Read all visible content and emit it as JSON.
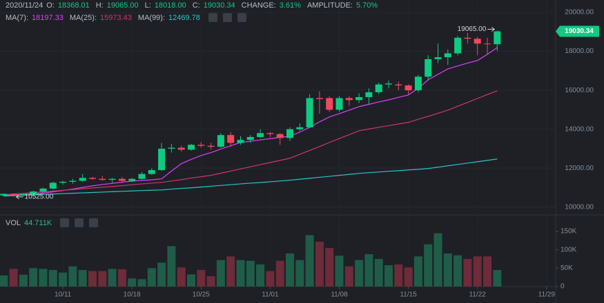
{
  "header": {
    "date": "2020/11/24",
    "fields": [
      {
        "label": "O:",
        "value": "18368.01"
      },
      {
        "label": "H:",
        "value": "19065.00"
      },
      {
        "label": "L:",
        "value": "18018.00"
      },
      {
        "label": "C:",
        "value": "19030.34"
      },
      {
        "label": "CHANGE:",
        "value": "3.61%"
      },
      {
        "label": "AMPLITUDE:",
        "value": "5.70%"
      }
    ],
    "ma": [
      {
        "label": "MA(7):",
        "value": "18197.33"
      },
      {
        "label": "MA(25):",
        "value": "15973.43"
      },
      {
        "label": "MA(99):",
        "value": "12469.78"
      }
    ]
  },
  "chart_data": {
    "type": "candlestick",
    "categories": [
      null,
      null,
      null,
      null,
      null,
      null,
      "10/11",
      null,
      null,
      null,
      null,
      null,
      null,
      "10/18",
      null,
      null,
      null,
      null,
      null,
      null,
      "10/25",
      null,
      null,
      null,
      null,
      null,
      null,
      "11/01",
      null,
      null,
      null,
      null,
      null,
      null,
      "11/08",
      null,
      null,
      null,
      null,
      null,
      null,
      "11/15",
      null,
      null,
      null,
      null,
      null,
      null,
      "11/22",
      null,
      null,
      null,
      null,
      null,
      null,
      "11/29"
    ],
    "open": [
      10600,
      10680,
      10600,
      10620,
      10800,
      10950,
      11250,
      11300,
      11350,
      11500,
      11450,
      11400,
      11450,
      11350,
      11450,
      11700,
      11900,
      13000,
      13050,
      12950,
      13200,
      13150,
      13100,
      13700,
      13300,
      13450,
      13600,
      13800,
      13750,
      13550,
      14000,
      14100,
      15600,
      15600,
      15000,
      15600,
      15500,
      15650,
      15900,
      16300,
      16300,
      16250,
      16000,
      16700,
      17600,
      17700,
      17900,
      18700,
      18650,
      18400,
      18368.01,
      null,
      null,
      null,
      null,
      null
    ],
    "high": [
      10700,
      10700,
      10700,
      10850,
      11000,
      11300,
      11350,
      11450,
      11700,
      11550,
      11600,
      11500,
      11550,
      11500,
      11800,
      12000,
      13300,
      13250,
      13150,
      13250,
      13350,
      13300,
      13800,
      13850,
      13650,
      13700,
      14000,
      13850,
      13800,
      14100,
      14300,
      15800,
      15950,
      15700,
      15700,
      15700,
      15850,
      16100,
      16400,
      16500,
      16450,
      16300,
      16800,
      17800,
      18400,
      18100,
      18800,
      18950,
      18750,
      18700,
      19065,
      null,
      null,
      null,
      null,
      null
    ],
    "low": [
      10560,
      10525,
      10560,
      10600,
      10750,
      10900,
      11150,
      11200,
      11300,
      11400,
      11350,
      11250,
      11300,
      11300,
      11400,
      11650,
      11850,
      12800,
      12850,
      12900,
      13050,
      12950,
      13050,
      13100,
      13200,
      13300,
      13550,
      13600,
      13200,
      13400,
      13900,
      14050,
      14800,
      14900,
      14900,
      15200,
      15350,
      15300,
      15800,
      16100,
      16000,
      15800,
      15900,
      16500,
      17400,
      17300,
      17800,
      18400,
      17800,
      17850,
      18018,
      null,
      null,
      null,
      null,
      null
    ],
    "close": [
      10680,
      10600,
      10670,
      10800,
      10950,
      11250,
      11300,
      11350,
      11500,
      11450,
      11400,
      11450,
      11350,
      11450,
      11700,
      11900,
      13000,
      13050,
      12950,
      13200,
      13150,
      13100,
      13700,
      13300,
      13450,
      13600,
      13800,
      13750,
      13550,
      14000,
      14100,
      15600,
      15550,
      15000,
      15600,
      15500,
      15650,
      15900,
      16300,
      16350,
      16250,
      16000,
      16700,
      17600,
      17700,
      17900,
      18700,
      18650,
      18400,
      18370,
      19030.34,
      null,
      null,
      null,
      null,
      null
    ],
    "up_color": "#0ecb81",
    "down_color": "#f6465d",
    "ylim": [
      9600,
      20640
    ],
    "yticks": [
      {
        "value": 10000,
        "label": "10000.00"
      },
      {
        "value": 12000,
        "label": "12000.00"
      },
      {
        "value": 14000,
        "label": "14000.00"
      },
      {
        "value": 16000,
        "label": "16000.00"
      },
      {
        "value": 18000,
        "label": "18000.00"
      },
      {
        "value": 20000,
        "label": "20000.00"
      }
    ],
    "grid": true,
    "overlays": [
      {
        "color": "#e040fb",
        "values": [
          10600,
          10620,
          10640,
          10670,
          10720,
          10780,
          10850,
          10930,
          11010,
          11090,
          11160,
          11220,
          11280,
          11330,
          11370,
          11400,
          11450,
          11850,
          12230,
          12450,
          12650,
          12800,
          12980,
          13150,
          13320,
          13380,
          13450,
          13520,
          13580,
          13640,
          13850,
          14100,
          14380,
          14630,
          14800,
          14980,
          15160,
          15280,
          15400,
          15510,
          15640,
          15760,
          16100,
          16540,
          16820,
          17100,
          17250,
          17400,
          17530,
          17850,
          18197.33,
          null,
          null,
          null,
          null,
          null
        ]
      },
      {
        "color": "#d6336c",
        "values": [
          10640,
          10670,
          10700,
          10740,
          10780,
          10820,
          10860,
          10900,
          10940,
          10980,
          11020,
          11060,
          11100,
          11150,
          11190,
          11230,
          11270,
          11340,
          11410,
          11490,
          11560,
          11630,
          11740,
          11850,
          11960,
          12070,
          12180,
          12290,
          12400,
          12510,
          12710,
          12910,
          13110,
          13320,
          13520,
          13720,
          13920,
          14010,
          14100,
          14180,
          14270,
          14350,
          14510,
          14660,
          14820,
          14980,
          15180,
          15380,
          15580,
          15780,
          15973.43,
          null,
          null,
          null,
          null,
          null
        ]
      },
      {
        "color": "#2cc6c7",
        "values": [
          10570,
          10590,
          10610,
          10630,
          10650,
          10670,
          10690,
          10710,
          10730,
          10750,
          10770,
          10790,
          10810,
          10830,
          10850,
          10865,
          10880,
          10920,
          10960,
          10990,
          11030,
          11070,
          11110,
          11150,
          11190,
          11230,
          11260,
          11300,
          11340,
          11380,
          11430,
          11480,
          11530,
          11580,
          11630,
          11680,
          11730,
          11770,
          11800,
          11840,
          11870,
          11910,
          11940,
          11980,
          12050,
          12120,
          12190,
          12260,
          12330,
          12400,
          12469.78,
          null,
          null,
          null,
          null,
          null
        ]
      }
    ],
    "high_mark": {
      "value": 19065,
      "label": "19065.00"
    },
    "low_mark": {
      "value": 10525,
      "label": "10525.00"
    },
    "last_price": {
      "value": 19030.34,
      "label": "19030.34"
    },
    "volume": {
      "type": "bar",
      "name": "VOL",
      "latest": "44.711K",
      "up_color": "#1f5d48",
      "down_color": "#6e2b3a",
      "ylim": [
        0,
        184
      ],
      "yticks": [
        0,
        {
          "value": 50,
          "label": "50K"
        },
        {
          "value": 100,
          "label": "100K"
        },
        {
          "value": 150,
          "label": "150K"
        }
      ],
      "values": [
        30,
        48,
        32,
        50,
        48,
        45,
        38,
        55,
        45,
        42,
        42,
        48,
        47,
        22,
        20,
        50,
        65,
        110,
        52,
        33,
        45,
        28,
        72,
        82,
        72,
        70,
        60,
        42,
        70,
        90,
        72,
        140,
        122,
        105,
        84,
        55,
        72,
        88,
        75,
        58,
        60,
        52,
        82,
        115,
        145,
        90,
        85,
        75,
        82,
        82,
        45,
        null,
        null,
        null,
        null,
        null
      ]
    }
  }
}
